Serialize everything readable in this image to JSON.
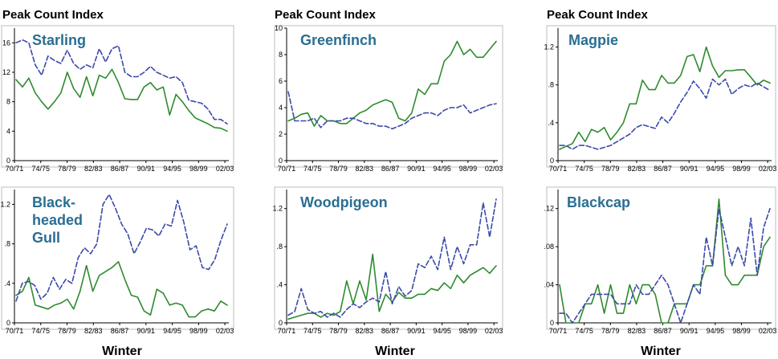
{
  "page": {
    "headers": [
      "Peak Count Index",
      "Peak Count Index",
      "Peak Count Index"
    ],
    "footers": [
      "Winter",
      "Winter",
      "Winter"
    ]
  },
  "colors": {
    "green": "#2e8b2e",
    "blue": "#3b4aa8",
    "title": "#2a6e92"
  },
  "chart_data": [
    {
      "type": "line",
      "title": [
        "Starling"
      ],
      "ylim": [
        0,
        18
      ],
      "yticks": [
        0,
        4,
        8,
        12,
        16
      ],
      "xticks": [
        "70/71",
        "74/75",
        "78/79",
        "82/83",
        "86/87",
        "90/91",
        "94/95",
        "98/99",
        "02/03"
      ],
      "series": [
        {
          "style": "solid",
          "color": "#2e8b2e",
          "values": [
            11,
            10,
            11.2,
            9.2,
            8,
            7,
            8,
            9.2,
            12,
            9.8,
            8.6,
            11.4,
            8.8,
            11.6,
            11.2,
            12.4,
            10.6,
            8.4,
            8.3,
            8.3,
            10,
            10.6,
            9.6,
            10,
            6.2,
            9,
            8,
            6.8,
            5.8,
            5.4,
            5,
            4.5,
            4.4,
            4
          ]
        },
        {
          "style": "dashed",
          "color": "#3b4aa8",
          "values": [
            16,
            16.4,
            16,
            13,
            11.6,
            14.2,
            13.6,
            13.2,
            15,
            13.2,
            12.4,
            13,
            12.6,
            15.2,
            13.4,
            15.2,
            15.6,
            12,
            11.4,
            11.4,
            12,
            12.8,
            12,
            11.6,
            11.2,
            11.4,
            10.6,
            8.2,
            8,
            7.8,
            7,
            5.6,
            5.6,
            5
          ]
        }
      ]
    },
    {
      "type": "line",
      "title": [
        "Greenfinch"
      ],
      "ylim": [
        0,
        10
      ],
      "yticks": [
        0,
        2,
        4,
        6,
        8,
        10
      ],
      "xticks": [
        "70/71",
        "74/75",
        "78/79",
        "82/83",
        "86/87",
        "90/91",
        "94/95",
        "98/99",
        "02/03"
      ],
      "series": [
        {
          "style": "solid",
          "color": "#2e8b2e",
          "values": [
            3,
            3.2,
            3.5,
            3.6,
            2.6,
            3.4,
            3,
            3,
            2.8,
            2.8,
            3.2,
            3.6,
            3.8,
            4.2,
            4.4,
            4.6,
            4.4,
            3.2,
            3,
            3.6,
            5.4,
            5,
            5.8,
            5.8,
            7.5,
            8,
            9,
            8,
            8.4,
            7.8,
            7.8,
            8.4,
            9
          ]
        },
        {
          "style": "dashed",
          "color": "#3b4aa8",
          "values": [
            5.2,
            3,
            3,
            3,
            3.2,
            2.5,
            3,
            3,
            3,
            3.2,
            3.2,
            3,
            2.8,
            2.8,
            2.6,
            2.6,
            2.4,
            2.6,
            2.8,
            3.2,
            3.4,
            3.6,
            3.6,
            3.4,
            3.8,
            4,
            4,
            4.2,
            3.6,
            3.8,
            4,
            4.2,
            4.3
          ]
        }
      ]
    },
    {
      "type": "line",
      "title": [
        "Magpie"
      ],
      "ylim": [
        0,
        1.4
      ],
      "yticks": [
        0,
        0.4,
        0.8,
        1.2
      ],
      "xticks": [
        "70/71",
        "74/75",
        "78/79",
        "82/83",
        "86/87",
        "90/91",
        "94/95",
        "98/99",
        "02/03"
      ],
      "series": [
        {
          "style": "solid",
          "color": "#2e8b2e",
          "values": [
            0.12,
            0.15,
            0.18,
            0.3,
            0.2,
            0.33,
            0.3,
            0.35,
            0.22,
            0.3,
            0.4,
            0.6,
            0.6,
            0.85,
            0.75,
            0.75,
            0.9,
            0.82,
            0.82,
            0.9,
            1.1,
            1.12,
            0.94,
            1.2,
            1,
            0.88,
            0.95,
            0.95,
            0.96,
            0.96,
            0.88,
            0.8,
            0.85,
            0.82
          ]
        },
        {
          "style": "dashed",
          "color": "#3b4aa8",
          "values": [
            0.16,
            0.16,
            0.12,
            0.16,
            0.16,
            0.14,
            0.12,
            0.14,
            0.16,
            0.2,
            0.24,
            0.28,
            0.35,
            0.38,
            0.36,
            0.34,
            0.46,
            0.4,
            0.5,
            0.62,
            0.72,
            0.84,
            0.76,
            0.66,
            0.86,
            0.8,
            0.86,
            0.7,
            0.76,
            0.8,
            0.78,
            0.82,
            0.78,
            0.74
          ]
        }
      ]
    },
    {
      "type": "line",
      "title": [
        "Black-",
        "headed",
        "Gull"
      ],
      "ylim": [
        0,
        1.35
      ],
      "yticks": [
        0,
        0.4,
        0.8,
        1.2
      ],
      "xticks": [
        "70/71",
        "74/75",
        "78/79",
        "82/83",
        "86/87",
        "90/91",
        "94/95",
        "98/99",
        "02/03"
      ],
      "series": [
        {
          "style": "solid",
          "color": "#2e8b2e",
          "values": [
            0.28,
            0.32,
            0.46,
            0.18,
            0.16,
            0.14,
            0.18,
            0.2,
            0.24,
            0.14,
            0.32,
            0.58,
            0.32,
            0.48,
            0.52,
            0.56,
            0.62,
            0.44,
            0.28,
            0.26,
            0.12,
            0.08,
            0.34,
            0.3,
            0.18,
            0.2,
            0.18,
            0.06,
            0.06,
            0.12,
            0.14,
            0.12,
            0.22,
            0.18
          ]
        },
        {
          "style": "dashed",
          "color": "#3b4aa8",
          "values": [
            0.22,
            0.4,
            0.42,
            0.38,
            0.24,
            0.3,
            0.46,
            0.34,
            0.44,
            0.4,
            0.66,
            0.76,
            0.7,
            0.8,
            1.2,
            1.3,
            1.16,
            1,
            0.9,
            0.7,
            0.82,
            0.96,
            0.94,
            0.88,
            1,
            0.98,
            1.24,
            1.02,
            0.74,
            0.78,
            0.56,
            0.54,
            0.64,
            0.84,
            1
          ]
        }
      ]
    },
    {
      "type": "line",
      "title": [
        "Woodpigeon"
      ],
      "ylim": [
        0,
        1.4
      ],
      "yticks": [
        0,
        0.4,
        0.8,
        1.2
      ],
      "xticks": [
        "70/71",
        "74/75",
        "78/79",
        "82/83",
        "86/87",
        "90/91",
        "94/95",
        "98/99",
        "02/03"
      ],
      "series": [
        {
          "style": "solid",
          "color": "#2e8b2e",
          "values": [
            0.04,
            0.06,
            0.08,
            0.1,
            0.1,
            0.06,
            0.1,
            0.08,
            0.12,
            0.44,
            0.2,
            0.44,
            0.24,
            0.72,
            0.12,
            0.3,
            0.22,
            0.32,
            0.26,
            0.26,
            0.3,
            0.3,
            0.36,
            0.34,
            0.42,
            0.36,
            0.5,
            0.42,
            0.5,
            0.54,
            0.58,
            0.52,
            0.6
          ]
        },
        {
          "style": "dashed",
          "color": "#3b4aa8",
          "values": [
            0.08,
            0.12,
            0.36,
            0.14,
            0.1,
            0.12,
            0.06,
            0.1,
            0.06,
            0.14,
            0.2,
            0.16,
            0.22,
            0.26,
            0.22,
            0.54,
            0.2,
            0.38,
            0.28,
            0.34,
            0.62,
            0.58,
            0.7,
            0.56,
            0.9,
            0.56,
            0.8,
            0.62,
            0.82,
            0.82,
            1.26,
            0.9,
            1.3
          ]
        }
      ]
    },
    {
      "type": "line",
      "title": [
        "Blackcap"
      ],
      "ylim": [
        0,
        0.14
      ],
      "yticks": [
        0,
        0.04,
        0.08,
        0.12
      ],
      "xticks": [
        "70/71",
        "74/75",
        "78/79",
        "82/83",
        "86/87",
        "90/91",
        "94/95",
        "98/99",
        "02/03"
      ],
      "series": [
        {
          "style": "solid",
          "color": "#2e8b2e",
          "values": [
            0.04,
            0,
            0,
            0,
            0.02,
            0.02,
            0.04,
            0.01,
            0.04,
            0.01,
            0.01,
            0.04,
            0.02,
            0.04,
            0.04,
            0.03,
            0,
            0,
            0.02,
            0.02,
            0.02,
            0.04,
            0.04,
            0.06,
            0.06,
            0.13,
            0.05,
            0.04,
            0.04,
            0.05,
            0.05,
            0.05,
            0.08,
            0.09
          ]
        },
        {
          "style": "dashed",
          "color": "#3b4aa8",
          "values": [
            0.01,
            0.01,
            0,
            0.01,
            0.02,
            0.03,
            0.03,
            0.03,
            0.03,
            0.02,
            0.02,
            0.02,
            0.04,
            0.03,
            0.03,
            0.04,
            0.05,
            0.04,
            0.02,
            0,
            0.02,
            0.04,
            0.03,
            0.09,
            0.06,
            0.12,
            0.09,
            0.06,
            0.08,
            0.06,
            0.11,
            0.05,
            0.1,
            0.12
          ]
        }
      ]
    }
  ]
}
